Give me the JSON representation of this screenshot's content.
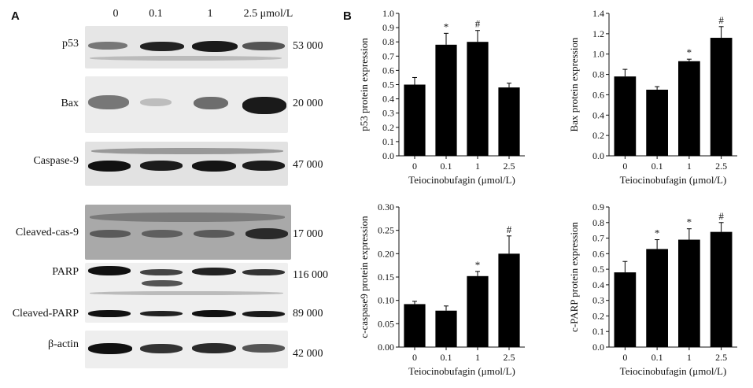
{
  "blot": {
    "panel_letter": "A",
    "lanes": [
      "0",
      "0.1",
      "1",
      "2.5 μmol/L"
    ],
    "rows": [
      {
        "label": "p53",
        "mw": "53 000"
      },
      {
        "label": "Bax",
        "mw": "20 000"
      },
      {
        "label": "Caspase-9",
        "mw": "47 000"
      },
      {
        "label": "Cleaved-cas-9",
        "mw": "17 000"
      },
      {
        "label": "PARP",
        "mw": "116 000"
      },
      {
        "label": "Cleaved-PARP",
        "mw": "89 000"
      },
      {
        "label": "β-actin",
        "mw": "42 000"
      }
    ]
  },
  "charts_panel": {
    "panel_letter": "B"
  },
  "chart_data": [
    {
      "type": "bar",
      "categories": [
        "0",
        "0.1",
        "1",
        "2.5"
      ],
      "values": [
        0.5,
        0.78,
        0.8,
        0.48
      ],
      "errors": [
        0.05,
        0.08,
        0.08,
        0.03
      ],
      "annotations": [
        "",
        "*",
        "#",
        ""
      ],
      "xlabel": "Teiocinobufagin (μmol/L)",
      "ylabel": "p53 protein expression",
      "ylim": [
        0,
        1.0
      ],
      "yticks": [
        "0.0",
        "0.1",
        "0.2",
        "0.3",
        "0.4",
        "0.5",
        "0.6",
        "0.7",
        "0.8",
        "0.9",
        "1.0"
      ],
      "ytick_values": [
        0,
        0.1,
        0.2,
        0.3,
        0.4,
        0.5,
        0.6,
        0.7,
        0.8,
        0.9,
        1.0
      ]
    },
    {
      "type": "bar",
      "categories": [
        "0",
        "0.1",
        "1",
        "2.5"
      ],
      "values": [
        0.78,
        0.65,
        0.93,
        1.16
      ],
      "errors": [
        0.07,
        0.03,
        0.02,
        0.11
      ],
      "annotations": [
        "",
        "",
        "*",
        "#"
      ],
      "xlabel": "Teiocinobufagin (μmol/L)",
      "ylabel": "Bax protein expression",
      "ylim": [
        0,
        1.4
      ],
      "yticks": [
        "0.0",
        "0.2",
        "0.4",
        "0.6",
        "0.8",
        "1.0",
        "1.2",
        "1.4"
      ],
      "ytick_values": [
        0,
        0.2,
        0.4,
        0.6,
        0.8,
        1.0,
        1.2,
        1.4
      ]
    },
    {
      "type": "bar",
      "categories": [
        "0",
        "0.1",
        "1",
        "2.5"
      ],
      "values": [
        0.092,
        0.078,
        0.152,
        0.2
      ],
      "errors": [
        0.006,
        0.01,
        0.01,
        0.038
      ],
      "annotations": [
        "",
        "",
        "*",
        "#"
      ],
      "xlabel": "Teiocinobufagin (μmol/L)",
      "ylabel": "c-caspase9 protein expression",
      "ylim": [
        0,
        0.3
      ],
      "yticks": [
        "0.00",
        "0.05",
        "0.10",
        "0.15",
        "0.20",
        "0.25",
        "0.30"
      ],
      "ytick_values": [
        0,
        0.05,
        0.1,
        0.15,
        0.2,
        0.25,
        0.3
      ]
    },
    {
      "type": "bar",
      "categories": [
        "0",
        "0.1",
        "1",
        "2.5"
      ],
      "values": [
        0.48,
        0.63,
        0.69,
        0.74
      ],
      "errors": [
        0.07,
        0.06,
        0.07,
        0.06
      ],
      "annotations": [
        "",
        "*",
        "*",
        "#"
      ],
      "xlabel": "Teiocinobufagin (μmol/L)",
      "ylabel": "c-PARP protein expression",
      "ylim": [
        0,
        0.9
      ],
      "yticks": [
        "0.0",
        "0.1",
        "0.2",
        "0.3",
        "0.4",
        "0.5",
        "0.6",
        "0.7",
        "0.8",
        "0.9"
      ],
      "ytick_values": [
        0,
        0.1,
        0.2,
        0.3,
        0.4,
        0.5,
        0.6,
        0.7,
        0.8,
        0.9
      ]
    }
  ]
}
